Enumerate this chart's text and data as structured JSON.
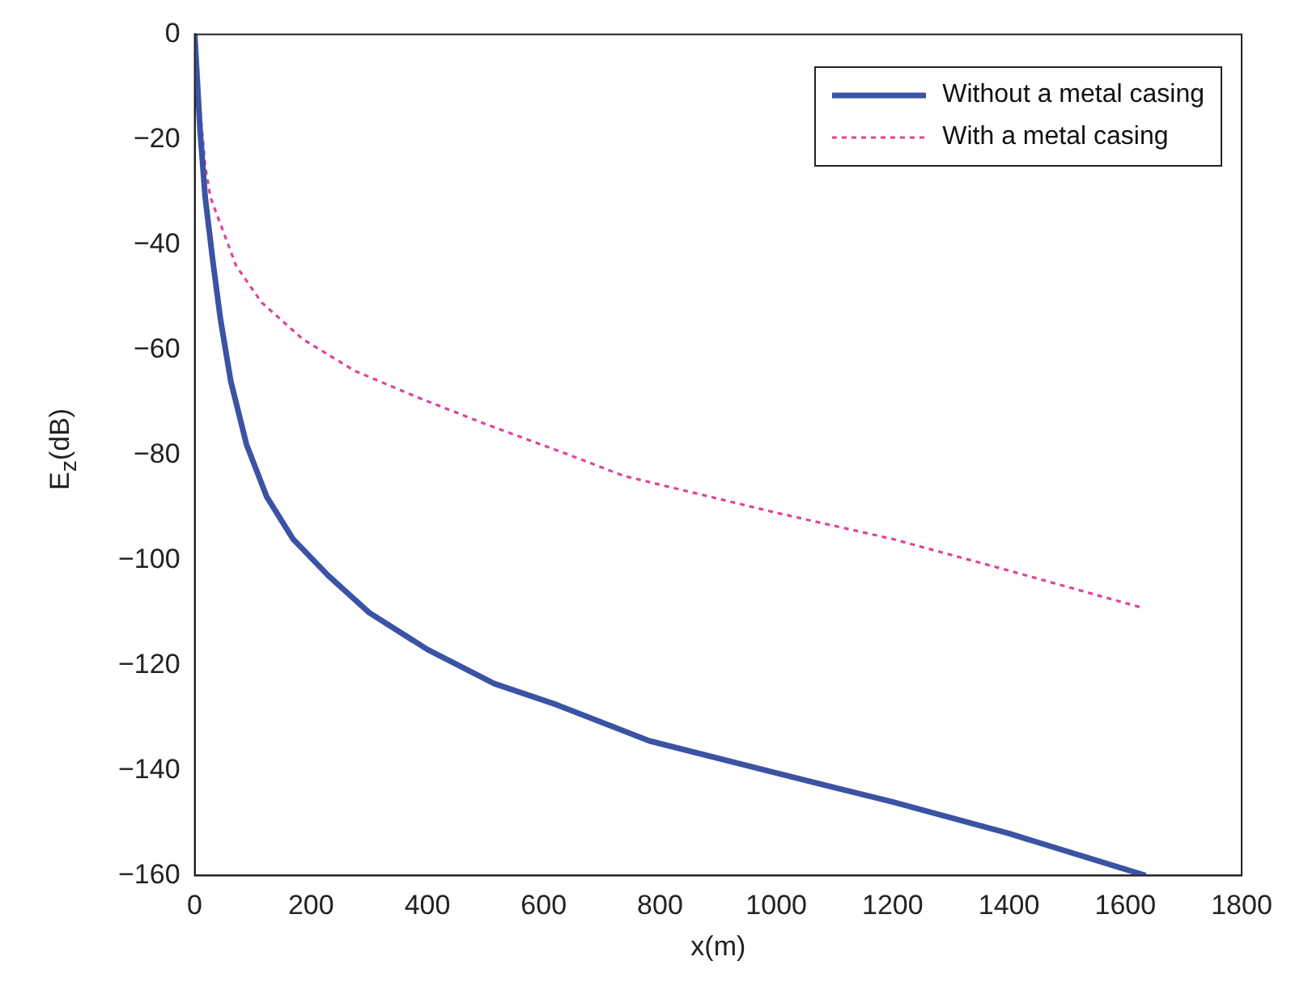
{
  "chart_data": {
    "type": "line",
    "xlabel": "x(m)",
    "ylabel": "E$_{z}$(dB)",
    "xlim": [
      0,
      1800
    ],
    "xticks": [
      0,
      200,
      400,
      600,
      800,
      1000,
      1200,
      1400,
      1600,
      1800
    ],
    "ylim": [
      -160,
      0
    ],
    "yticks": [
      -160,
      -140,
      -120,
      -100,
      -80,
      -60,
      -40,
      -20,
      0
    ],
    "grid": false,
    "legend": "top right",
    "marker": "none",
    "series": [
      {
        "name": "Without a metal casing",
        "color": "#3a53a4",
        "line_style": "solid",
        "x": [
          0,
          9,
          18,
          31,
          44,
          62,
          89,
          124,
          169,
          230,
          300,
          400,
          515,
          622,
          782,
          1000,
          1200,
          1400,
          1635
        ],
        "values": [
          0,
          -18,
          -31,
          -43,
          -54,
          -66,
          -78,
          -88,
          -96,
          -103,
          -110,
          -117,
          -123.5,
          -127.5,
          -134.4,
          -140.5,
          -146,
          -152,
          -160
        ]
      },
      {
        "name": "With a metal casing",
        "color": "#e0439a",
        "line_style": "dotted",
        "x": [
          0,
          9,
          18,
          27,
          44,
          71,
          115,
          186,
          275,
          382,
          497,
          644,
          738,
          1000,
          1200,
          1400,
          1627
        ],
        "values": [
          0,
          -14,
          -25,
          -31,
          -36,
          -44,
          -51,
          -58,
          -64,
          -69,
          -74,
          -80,
          -84,
          -91,
          -96,
          -102,
          -109
        ]
      }
    ]
  }
}
